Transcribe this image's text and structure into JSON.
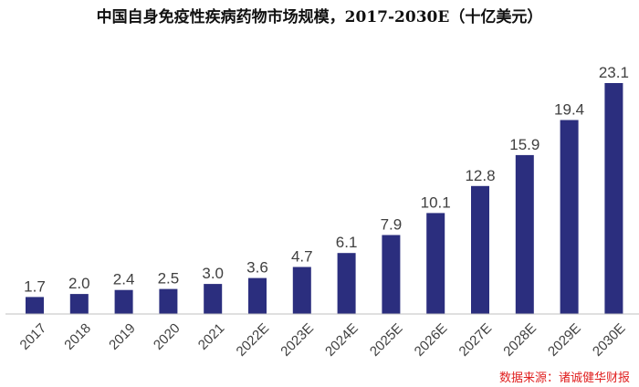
{
  "chart_data": {
    "type": "bar",
    "title": "中国自身免疫性疾病药物市场规模，2017-2030E（十亿美元）",
    "categories": [
      "2017",
      "2018",
      "2019",
      "2020",
      "2021",
      "2022E",
      "2023E",
      "2024E",
      "2025E",
      "2026E",
      "2027E",
      "2028E",
      "2029E",
      "2030E"
    ],
    "values": [
      1.7,
      2.0,
      2.4,
      2.5,
      3.0,
      3.6,
      4.7,
      6.1,
      7.9,
      10.1,
      12.8,
      15.9,
      19.4,
      23.1
    ],
    "value_labels": [
      "1.7",
      "2.0",
      "2.4",
      "2.5",
      "3.0",
      "3.6",
      "4.7",
      "6.1",
      "7.9",
      "10.1",
      "12.8",
      "15.9",
      "19.4",
      "23.1"
    ],
    "xlabel": "",
    "ylabel": "",
    "ylim": [
      0,
      23.1
    ],
    "grid": false,
    "bar_color": "#2b2e7e",
    "source": "数据来源：诸诚健华财报",
    "source_color": "#e02020"
  }
}
